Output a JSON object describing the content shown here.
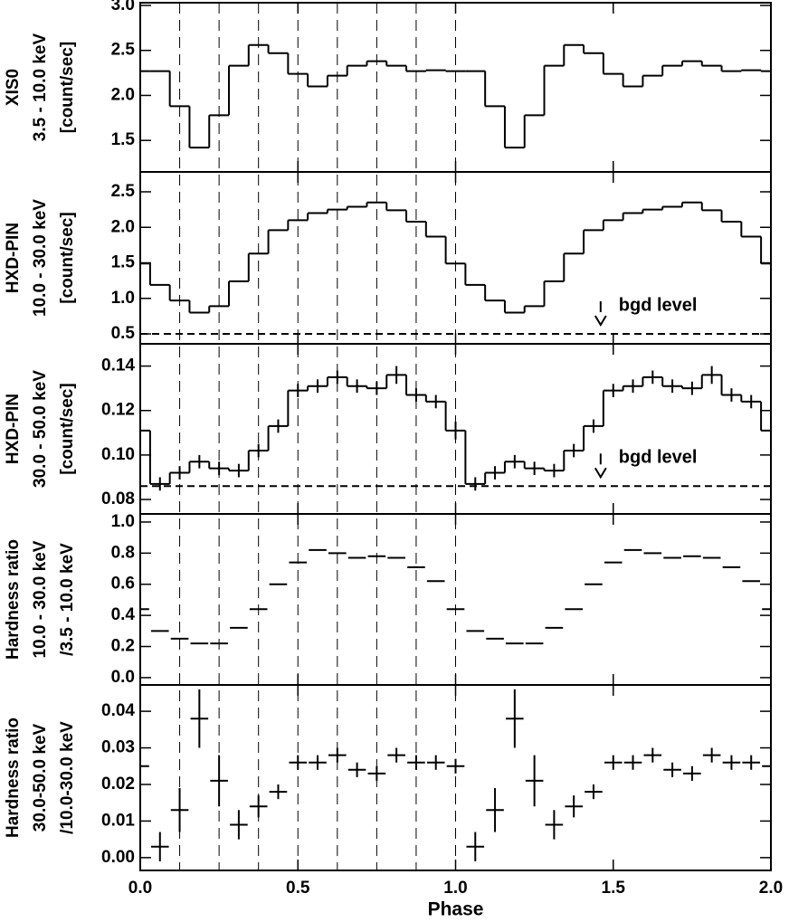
{
  "chart_data": [
    {
      "type": "step",
      "ylabel": [
        "XIS0",
        "3.5 - 10.0 keV",
        "[count/sec]"
      ],
      "xlim": [
        0,
        2
      ],
      "ylim": [
        1.15,
        3.03
      ],
      "yticks": [
        1.5,
        {
          "value": 2,
          "label": "2.0"
        },
        2.5,
        {
          "value": 3,
          "label": "3.0"
        }
      ],
      "vlines": [
        0.125,
        0.25,
        0.375,
        0.5,
        0.625,
        0.75,
        0.875,
        1
      ],
      "x": [
        0,
        0.0625,
        0.125,
        0.1875,
        0.25,
        0.3125,
        0.375,
        0.4375,
        0.5,
        0.5625,
        0.625,
        0.6875,
        0.75,
        0.8125,
        0.875,
        0.9375,
        1,
        1.0625,
        1.125,
        1.1875,
        1.25,
        1.3125,
        1.375,
        1.4375,
        1.5,
        1.5625,
        1.625,
        1.6875,
        1.75,
        1.8125,
        1.875,
        1.9375,
        2
      ],
      "values": [
        2.27,
        2.27,
        1.88,
        1.42,
        1.78,
        2.33,
        2.56,
        2.47,
        2.24,
        2.1,
        2.22,
        2.33,
        2.38,
        2.33,
        2.27,
        2.28,
        2.27,
        2.27,
        1.88,
        1.42,
        1.78,
        2.33,
        2.56,
        2.47,
        2.24,
        2.1,
        2.22,
        2.33,
        2.38,
        2.33,
        2.27,
        2.28,
        2.27
      ],
      "color": "#000000"
    },
    {
      "type": "step",
      "ylabel": [
        "HXD-PIN",
        "10.0 - 30.0 keV",
        "[count/sec]"
      ],
      "xlim": [
        0,
        2
      ],
      "ylim": [
        0.36,
        2.78
      ],
      "yticks": [
        0.5,
        {
          "value": 1,
          "label": "1.0"
        },
        1.5,
        {
          "value": 2,
          "label": "2.0"
        },
        2.5
      ],
      "bgd_level": 0.5,
      "annotation": "bgd level",
      "x": [
        0,
        0.0625,
        0.125,
        0.1875,
        0.25,
        0.3125,
        0.375,
        0.4375,
        0.5,
        0.5625,
        0.625,
        0.6875,
        0.75,
        0.8125,
        0.875,
        0.9375,
        1,
        1.0625,
        1.125,
        1.1875,
        1.25,
        1.3125,
        1.375,
        1.4375,
        1.5,
        1.5625,
        1.625,
        1.6875,
        1.75,
        1.8125,
        1.875,
        1.9375,
        2
      ],
      "values": [
        1.49,
        1.19,
        0.97,
        0.8,
        0.89,
        1.24,
        1.63,
        1.96,
        2.1,
        2.2,
        2.25,
        2.29,
        2.35,
        2.24,
        2.08,
        1.87,
        1.49,
        1.19,
        0.97,
        0.8,
        0.89,
        1.24,
        1.63,
        1.96,
        2.1,
        2.2,
        2.25,
        2.29,
        2.35,
        2.24,
        2.08,
        1.87,
        1.49
      ],
      "color": "#000000"
    },
    {
      "type": "step",
      "ylabel": [
        "HXD-PIN",
        "30.0 - 50.0 keV",
        "[count/sec]"
      ],
      "xlim": [
        0,
        2
      ],
      "ylim": [
        0.0735,
        0.15
      ],
      "yticks": [
        0.08,
        {
          "value": 0.1,
          "label": "0.10"
        },
        0.12,
        0.14
      ],
      "bgd_level": 0.086,
      "annotation": "bgd level",
      "x": [
        0,
        0.0625,
        0.125,
        0.1875,
        0.25,
        0.3125,
        0.375,
        0.4375,
        0.5,
        0.5625,
        0.625,
        0.6875,
        0.75,
        0.8125,
        0.875,
        0.9375,
        1,
        1.0625,
        1.125,
        1.1875,
        1.25,
        1.3125,
        1.375,
        1.4375,
        1.5,
        1.5625,
        1.625,
        1.6875,
        1.75,
        1.8125,
        1.875,
        1.9375,
        2
      ],
      "values": [
        0.111,
        0.087,
        0.092,
        0.097,
        0.094,
        0.093,
        0.102,
        0.113,
        0.129,
        0.131,
        0.135,
        0.131,
        0.13,
        0.136,
        0.127,
        0.124,
        0.111,
        0.087,
        0.092,
        0.097,
        0.094,
        0.093,
        0.102,
        0.113,
        0.129,
        0.131,
        0.135,
        0.131,
        0.13,
        0.136,
        0.127,
        0.124,
        0.111
      ],
      "errors": [
        0.004,
        0.003,
        0.003,
        0.003,
        0.003,
        0.003,
        0.003,
        0.003,
        0.003,
        0.003,
        0.003,
        0.003,
        0.003,
        0.004,
        0.003,
        0.003,
        0.004,
        0.003,
        0.003,
        0.003,
        0.003,
        0.003,
        0.003,
        0.003,
        0.003,
        0.003,
        0.003,
        0.003,
        0.003,
        0.004,
        0.003,
        0.003,
        0.004
      ],
      "color": "#000000"
    },
    {
      "type": "errorbar",
      "ylabel": [
        "Hardness ratio",
        "10.0 - 30.0 keV",
        "/3.5 - 10.0 keV"
      ],
      "xlim": [
        0,
        2
      ],
      "ylim": [
        -0.047,
        1.052
      ],
      "yticks": [
        {
          "value": 0,
          "label": "0.0"
        },
        0.2,
        0.4,
        0.6,
        0.8,
        {
          "value": 1,
          "label": "1.0"
        }
      ],
      "x": [
        0,
        0.0625,
        0.125,
        0.1875,
        0.25,
        0.3125,
        0.375,
        0.4375,
        0.5,
        0.5625,
        0.625,
        0.6875,
        0.75,
        0.8125,
        0.875,
        0.9375,
        1,
        1.0625,
        1.125,
        1.1875,
        1.25,
        1.3125,
        1.375,
        1.4375,
        1.5,
        1.5625,
        1.625,
        1.6875,
        1.75,
        1.8125,
        1.875,
        1.9375,
        2
      ],
      "values": [
        0.44,
        0.3,
        0.25,
        0.22,
        0.22,
        0.32,
        0.44,
        0.6,
        0.74,
        0.82,
        0.8,
        0.77,
        0.78,
        0.77,
        0.71,
        0.62,
        0.44,
        0.3,
        0.25,
        0.22,
        0.22,
        0.32,
        0.44,
        0.6,
        0.74,
        0.82,
        0.8,
        0.77,
        0.78,
        0.77,
        0.71,
        0.62,
        0.44
      ],
      "color": "#000000"
    },
    {
      "type": "errorbar",
      "ylabel": [
        "Hardness ratio",
        "30.0-50.0 keV",
        "/10.0-30.0 keV"
      ],
      "xlabel": "Phase",
      "xlim": [
        0,
        2
      ],
      "ylim": [
        -0.0035,
        0.0472
      ],
      "xticks": [
        {
          "value": 0,
          "label": "0.0"
        },
        0.5,
        {
          "value": 1,
          "label": "1.0"
        },
        1.5,
        {
          "value": 2,
          "label": "2.0"
        }
      ],
      "yticks": [
        {
          "value": 0,
          "label": "0.00"
        },
        {
          "value": 0.01,
          "label": "0.01"
        },
        {
          "value": 0.02,
          "label": "0.02"
        },
        {
          "value": 0.03,
          "label": "0.03"
        },
        {
          "value": 0.04,
          "label": "0.04"
        }
      ],
      "x": [
        0,
        0.0625,
        0.125,
        0.1875,
        0.25,
        0.3125,
        0.375,
        0.4375,
        0.5,
        0.5625,
        0.625,
        0.6875,
        0.75,
        0.8125,
        0.875,
        0.9375,
        1,
        1.0625,
        1.125,
        1.1875,
        1.25,
        1.3125,
        1.375,
        1.4375,
        1.5,
        1.5625,
        1.625,
        1.6875,
        1.75,
        1.8125,
        1.875,
        1.9375,
        2
      ],
      "values": [
        0.025,
        0.003,
        0.013,
        0.038,
        0.021,
        0.009,
        0.014,
        0.018,
        0.026,
        0.026,
        0.028,
        0.024,
        0.023,
        0.028,
        0.026,
        0.026,
        0.025,
        0.003,
        0.013,
        0.038,
        0.021,
        0.009,
        0.014,
        0.018,
        0.026,
        0.026,
        0.028,
        0.024,
        0.023,
        0.028,
        0.026,
        0.026,
        0.025
      ],
      "errors": [
        0.002,
        0.004,
        0.006,
        0.008,
        0.007,
        0.004,
        0.003,
        0.002,
        0.002,
        0.002,
        0.002,
        0.002,
        0.002,
        0.002,
        0.002,
        0.002,
        0.002,
        0.004,
        0.006,
        0.008,
        0.007,
        0.004,
        0.003,
        0.002,
        0.002,
        0.002,
        0.002,
        0.002,
        0.002,
        0.002,
        0.002,
        0.002,
        0.002
      ],
      "color": "#000000"
    }
  ]
}
